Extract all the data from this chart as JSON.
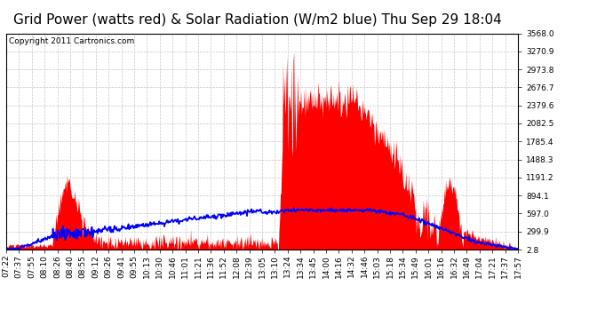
{
  "title": "Grid Power (watts red) & Solar Radiation (W/m2 blue) Thu Sep 29 18:04",
  "copyright": "Copyright 2011 Cartronics.com",
  "background_color": "#ffffff",
  "plot_bg_color": "#ffffff",
  "grid_color": "#c8c8c8",
  "yticks": [
    2.8,
    299.9,
    597.0,
    894.1,
    1191.2,
    1488.3,
    1785.4,
    2082.5,
    2379.6,
    2676.7,
    2973.8,
    3270.9,
    3568.0
  ],
  "ylim": [
    0,
    3568.0
  ],
  "xtick_labels": [
    "07:22",
    "07:37",
    "07:55",
    "08:10",
    "08:26",
    "08:40",
    "08:55",
    "09:12",
    "09:26",
    "09:41",
    "09:55",
    "10:13",
    "10:30",
    "10:46",
    "11:01",
    "11:21",
    "11:36",
    "11:52",
    "12:08",
    "12:39",
    "13:05",
    "13:10",
    "13:24",
    "13:34",
    "13:45",
    "14:00",
    "14:16",
    "14:32",
    "14:46",
    "15:03",
    "15:18",
    "15:34",
    "15:49",
    "16:01",
    "16:16",
    "16:32",
    "16:49",
    "17:04",
    "17:21",
    "17:37",
    "17:57"
  ],
  "red_color": "#ff0000",
  "blue_color": "#0000ff",
  "title_fontsize": 11,
  "copyright_fontsize": 6.5,
  "tick_fontsize": 6.5
}
